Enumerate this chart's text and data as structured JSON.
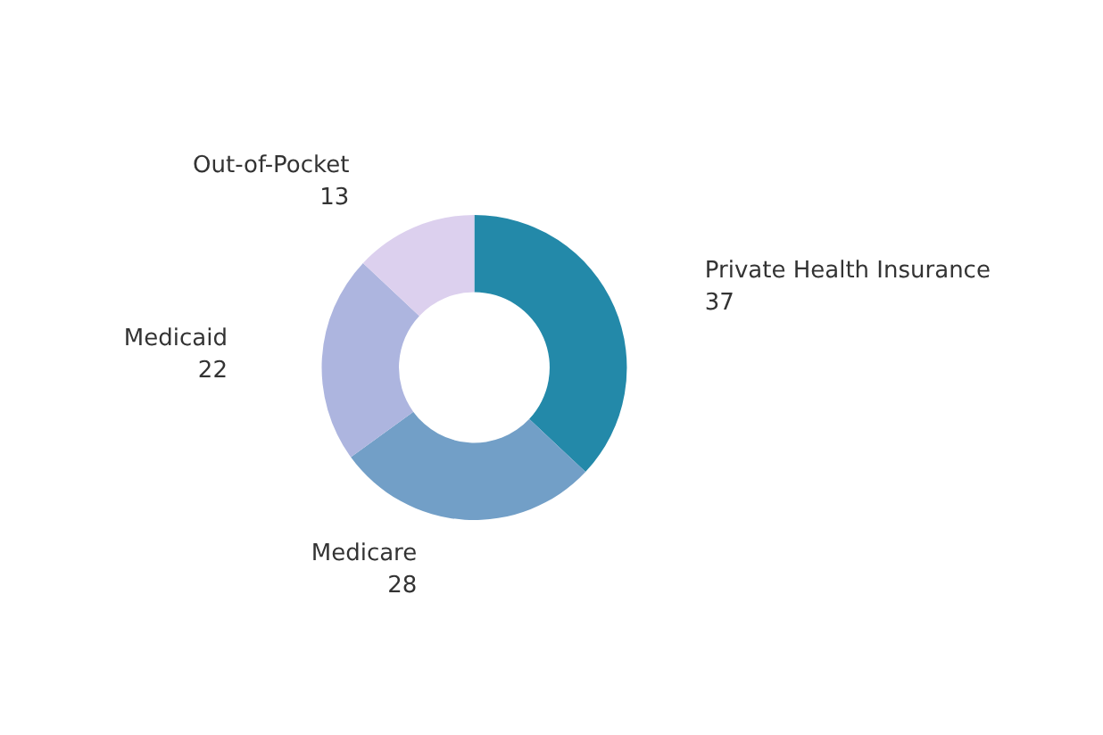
{
  "chart_data": {
    "type": "donut",
    "categories": [
      "Private Health Insurance",
      "Medicare",
      "Medicaid",
      "Out-of-Pocket"
    ],
    "values": [
      37,
      28,
      22,
      13
    ],
    "colors": [
      "#2389a9",
      "#729fc7",
      "#adb5df",
      "#dcd0ee"
    ],
    "data_labels": true,
    "legend": false
  }
}
